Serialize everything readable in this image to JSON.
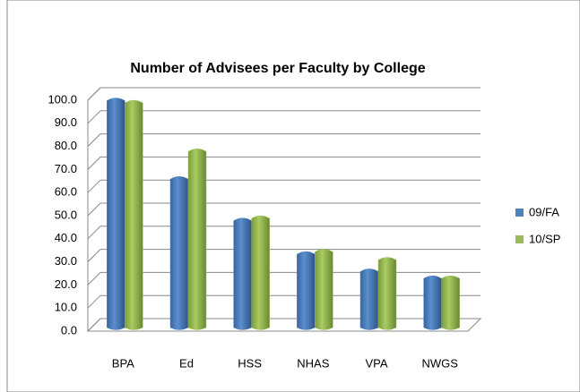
{
  "chart_data": {
    "type": "bar",
    "title": "Number of Advisees per Faculty by College",
    "categories": [
      "BPA",
      "Ed",
      "HSS",
      "NHAS",
      "VPA",
      "NWGS"
    ],
    "series": [
      {
        "name": "09/FA",
        "color": "#4f81bd",
        "values": [
          97.5,
          63.5,
          45.5,
          31,
          23.5,
          20.5
        ]
      },
      {
        "name": "10/SP",
        "color": "#9bbb59",
        "values": [
          96.5,
          75.5,
          46.5,
          32,
          28.5,
          20.5
        ]
      }
    ],
    "ylim": [
      0,
      100
    ],
    "yticks": [
      {
        "value": 0,
        "label": "0.0"
      },
      {
        "value": 10,
        "label": "10.0"
      },
      {
        "value": 20,
        "label": "20.0"
      },
      {
        "value": 30,
        "label": "30.0"
      },
      {
        "value": 40,
        "label": "40.0"
      },
      {
        "value": 50,
        "label": "50.0"
      },
      {
        "value": 60,
        "label": "60.0"
      },
      {
        "value": 70,
        "label": "70.0"
      },
      {
        "value": 80,
        "label": "80.0"
      },
      {
        "value": 90,
        "label": "90.0"
      },
      {
        "value": 100,
        "label": "100.0"
      }
    ],
    "grid": true,
    "legend": "right"
  }
}
